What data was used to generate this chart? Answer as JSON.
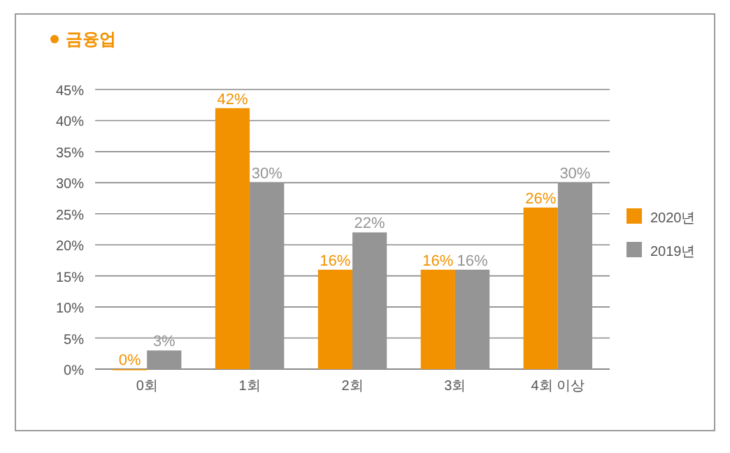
{
  "chart_data": {
    "type": "bar",
    "title": "금융업",
    "categories": [
      "0회",
      "1회",
      "2회",
      "3회",
      "4회 이상"
    ],
    "series": [
      {
        "name": "2020년",
        "color": "#f39200",
        "values": [
          0,
          42,
          16,
          16,
          26
        ],
        "value_labels": [
          "0%",
          "42%",
          "16%",
          "16%",
          "26%"
        ]
      },
      {
        "name": "2019년",
        "color": "#959595",
        "values": [
          3,
          30,
          22,
          16,
          30
        ],
        "value_labels": [
          "3%",
          "30%",
          "22%",
          "16%",
          "30%"
        ]
      }
    ],
    "ylim": [
      0,
      45
    ],
    "yticks": [
      {
        "value": 0,
        "label": "0%"
      },
      {
        "value": 5,
        "label": "5%"
      },
      {
        "value": 10,
        "label": "10%"
      },
      {
        "value": 15,
        "label": "15%"
      },
      {
        "value": 20,
        "label": "20%"
      },
      {
        "value": 25,
        "label": "25%"
      },
      {
        "value": 30,
        "label": "30%"
      },
      {
        "value": 35,
        "label": "35%"
      },
      {
        "value": 40,
        "label": "40%"
      },
      {
        "value": 45,
        "label": "45%"
      }
    ],
    "grid": "y",
    "legend": "right"
  }
}
